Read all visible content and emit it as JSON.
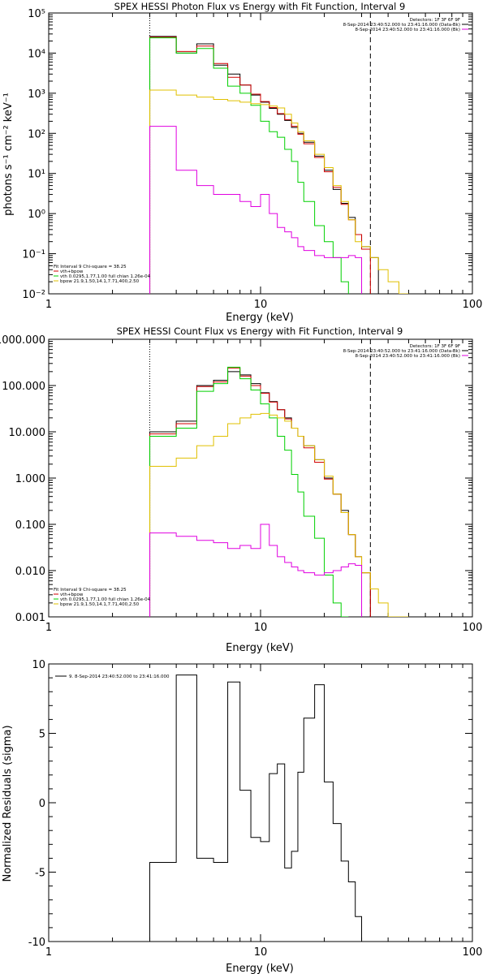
{
  "colors": {
    "black": "#000000",
    "total": "#000000",
    "fit": "#d00000",
    "vth": "#00d000",
    "bpow": "#e0c000",
    "background": "#e000e0"
  },
  "charts": [
    {
      "title": "SPEX HESSI Photon Flux vs Energy with Fit Function, Interval 9",
      "xlabel": "Energy (keV)",
      "ylabel": "photons s⁻¹ cm⁻² keV⁻¹",
      "xticks": [
        "1",
        "10",
        "100"
      ],
      "yticks": [
        "10⁻²",
        "10⁻¹",
        "10⁰",
        "10¹",
        "10²",
        "10³",
        "10⁴",
        "10⁵"
      ],
      "legend_tr": [
        "Detectors: 1F 3F 6F 9F",
        "8-Sep-2014 23:40:52.000 to 23:41:16.000 (Data-Bk)",
        "8-Sep-2014 23:40:52.000 to 23:41:16.000 (Bk)"
      ],
      "legend_bl": [
        "Fit Interval 9   Chi-square = 38.25",
        "vth+bpow",
        "vth 0.0295,1.77,1.00  full chian 1.26e-04",
        "bpow 21.9,1.50,14.1,7.71,400,2.50"
      ]
    },
    {
      "title": "SPEX HESSI Count Flux vs Energy with Fit Function, Interval 9",
      "xlabel": "Energy (keV)",
      "ylabel": "",
      "xticks": [
        "1",
        "10",
        "100"
      ],
      "yticks": [
        "0.001",
        "0.010",
        "0.100",
        "1.000",
        "10.000",
        "100.000",
        "1000.000"
      ],
      "legend_tr": [
        "Detectors: 1F 3F 6F 9F",
        "8-Sep-2014 23:40:52.000 to 23:41:16.000 (Data-Bk)",
        "8-Sep-2014 23:40:52.000 to 23:41:16.000 (Bk)"
      ],
      "legend_bl": [
        "Fit Interval 9   Chi-square = 38.25",
        "vth+bpow",
        "vth 0.0295,1.77,1.00  full chian 1.26e-04",
        "bpow 21.9,1.50,14.1,7.71,400,2.50"
      ]
    },
    {
      "title": "",
      "xlabel": "Energy (keV)",
      "ylabel": "Normalized Residuals (sigma)",
      "xticks": [
        "1",
        "10",
        "100"
      ],
      "yticks": [
        "-10",
        "-5",
        "0",
        "5",
        "10"
      ],
      "legend_tl": [
        "9.  8-Sep-2014 23:40:52.000 to 23:41:16.000"
      ]
    }
  ],
  "chart_data": [
    {
      "type": "line",
      "title": "SPEX HESSI Photon Flux vs Energy with Fit Function, Interval 9",
      "xlabel": "Energy (keV)",
      "ylabel": "photons s⁻¹ cm⁻² keV⁻¹",
      "xscale": "log",
      "yscale": "log",
      "xlim": [
        1,
        100
      ],
      "ylim": [
        0.01,
        100000
      ],
      "energy_edges": [
        3,
        4,
        5,
        6,
        7,
        8,
        9,
        10,
        11,
        12,
        13,
        14,
        15,
        16,
        18,
        20,
        22,
        24,
        26,
        28,
        30,
        33,
        36,
        40,
        45,
        50
      ],
      "markers": {
        "dotted_line_x": 3,
        "dashed_line_x": 33
      },
      "series": [
        {
          "name": "",
          "color": "total",
          "values": [
            26000,
            10000,
            17000,
            5000,
            3000,
            1600,
            900,
            600,
            420,
            300,
            210,
            140,
            100,
            60,
            27,
            12,
            4,
            1.8,
            0.8,
            0.3,
            0.15,
            0.08
          ]
        },
        {
          "name": "vth+bpow",
          "color": "fit",
          "values": [
            25000,
            11000,
            15000,
            5500,
            2500,
            1600,
            950,
            620,
            440,
            310,
            220,
            150,
            95,
            55,
            25,
            11,
            4.5,
            1.7,
            0.7,
            0.3,
            0.13
          ]
        },
        {
          "name": "vth 0.0295,1.77,1.00  full chian 1.26e-04",
          "color": "vth",
          "values": [
            24000,
            10000,
            13000,
            4200,
            1500,
            1000,
            500,
            200,
            110,
            80,
            40,
            20,
            6,
            2,
            0.5,
            0.2,
            0.08,
            0.02
          ]
        },
        {
          "name": "bpow 21.9,1.50,14.1,7.71,400,2.50",
          "color": "bpow",
          "values": [
            1200,
            900,
            800,
            700,
            650,
            600,
            550,
            520,
            480,
            430,
            300,
            180,
            110,
            65,
            30,
            14,
            5,
            2,
            0.7,
            0.2,
            0.15,
            0.08,
            0.04,
            0.02,
            0.01
          ]
        },
        {
          "name": "(Bk)",
          "color": "background",
          "values": [
            150,
            12,
            5,
            3,
            3,
            2,
            1.5,
            3,
            1,
            0.45,
            0.35,
            0.25,
            0.15,
            0.12,
            0.09,
            0.08,
            0.08,
            0.08,
            0.09,
            0.08
          ]
        }
      ]
    },
    {
      "type": "line",
      "title": "SPEX HESSI Count Flux vs Energy with Fit Function, Interval 9",
      "xlabel": "Energy (keV)",
      "ylabel": "",
      "xscale": "log",
      "yscale": "log",
      "xlim": [
        1,
        100
      ],
      "ylim": [
        0.001,
        1000
      ],
      "energy_edges": [
        3,
        4,
        5,
        6,
        7,
        8,
        9,
        10,
        11,
        12,
        13,
        14,
        15,
        16,
        18,
        20,
        22,
        24,
        26,
        28,
        30,
        33,
        36,
        40,
        45,
        50
      ],
      "markers": {
        "dotted_line_x": 3,
        "dashed_line_x": 33
      },
      "series": [
        {
          "name": "",
          "color": "total",
          "values": [
            10,
            17,
            100,
            130,
            200,
            170,
            110,
            70,
            45,
            30,
            20,
            12,
            8,
            5,
            2.5,
            1,
            0.45,
            0.2,
            0.06,
            0.02,
            0.009
          ]
        },
        {
          "name": "vth+bpow",
          "color": "fit",
          "values": [
            9,
            15,
            95,
            120,
            240,
            160,
            100,
            68,
            44,
            30,
            19,
            12,
            8,
            4.5,
            2.2,
            0.95,
            0.45,
            0.18,
            0.06,
            0.02,
            0.009
          ]
        },
        {
          "name": "vth 0.0295,1.77,1.00  full chian 1.26e-04",
          "color": "vth",
          "values": [
            8,
            12,
            75,
            110,
            250,
            140,
            80,
            40,
            20,
            8,
            4,
            1.2,
            0.5,
            0.15,
            0.05,
            0.008,
            0.002,
            0.001
          ]
        },
        {
          "name": "bpow 21.9,1.50,14.1,7.71,400,2.50",
          "color": "bpow",
          "values": [
            1.8,
            2.7,
            5,
            8,
            15,
            20,
            24,
            25,
            23,
            20,
            17,
            12,
            8,
            5,
            2.5,
            1.1,
            0.45,
            0.18,
            0.06,
            0.02,
            0.009,
            0.004,
            0.002,
            0.001,
            0.0007
          ]
        },
        {
          "name": "(Bk)",
          "color": "background",
          "values": [
            0.065,
            0.055,
            0.045,
            0.04,
            0.03,
            0.035,
            0.03,
            0.1,
            0.035,
            0.02,
            0.015,
            0.012,
            0.01,
            0.009,
            0.008,
            0.009,
            0.01,
            0.012,
            0.014,
            0.013
          ]
        }
      ]
    },
    {
      "type": "line",
      "title": "",
      "xlabel": "Energy (keV)",
      "ylabel": "Normalized Residuals (sigma)",
      "xscale": "log",
      "yscale": "linear",
      "xlim": [
        1,
        100
      ],
      "ylim": [
        -10,
        10
      ],
      "energy_edges": [
        3,
        4,
        5,
        6,
        7,
        8,
        9,
        10,
        11,
        12,
        13,
        14,
        15,
        16,
        18,
        20,
        22,
        24,
        26,
        28,
        30,
        33
      ],
      "series": [
        {
          "name": "9.  8-Sep-2014 23:40:52.000 to 23:41:16.000",
          "color": "total",
          "values": [
            -4.3,
            9.2,
            -4,
            -4.3,
            8.7,
            0.9,
            -2.5,
            -2.8,
            2.1,
            2.8,
            -4.7,
            -3.5,
            2.2,
            6.1,
            8.5,
            1.5,
            -1.5,
            -4.2,
            -5.7,
            -8.2,
            -10
          ]
        }
      ]
    }
  ]
}
